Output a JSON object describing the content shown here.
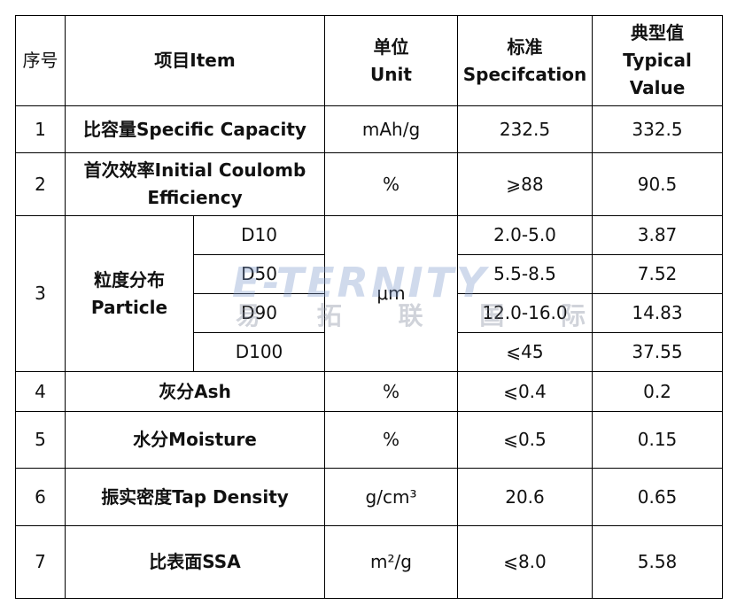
{
  "table": {
    "header": {
      "no": "序号",
      "item": "项目Item",
      "unit": [
        "单位",
        "Unit"
      ],
      "spec": [
        "标准",
        "Specifcation"
      ],
      "typical": [
        "典型值",
        "Typical",
        "Value"
      ]
    },
    "rows": [
      {
        "no": "1",
        "item": [
          "比容量Specific Capacity"
        ],
        "unit": "mAh/g",
        "spec": "232.5",
        "typical": "332.5"
      },
      {
        "no": "2",
        "item": [
          "首次效率Initial Coulomb",
          "Efficiency"
        ],
        "unit": "%",
        "spec": "⩾88",
        "typical": "90.5"
      },
      {
        "no": "3",
        "item": [
          "粒度分布",
          "Particle"
        ],
        "unit": "μm",
        "sub": [
          {
            "name": "D10",
            "spec": "2.0-5.0",
            "typical": "3.87"
          },
          {
            "name": "D50",
            "spec": "5.5-8.5",
            "typical": "7.52"
          },
          {
            "name": "D90",
            "spec": "12.0-16.0",
            "typical": "14.83"
          },
          {
            "name": "D100",
            "spec": "⩽45",
            "typical": "37.55"
          }
        ]
      },
      {
        "no": "4",
        "item": [
          "灰分Ash"
        ],
        "unit": "%",
        "spec": "⩽0.4",
        "typical": "0.2"
      },
      {
        "no": "5",
        "item": [
          "水分Moisture"
        ],
        "unit": "%",
        "spec": "⩽0.5",
        "typical": "0.15"
      },
      {
        "no": "6",
        "item": [
          "振实密度Tap Density"
        ],
        "unit": "g/cm³",
        "spec": "20.6",
        "typical": "0.65"
      },
      {
        "no": "7",
        "item": [
          "比表面SSA"
        ],
        "unit": "m²/g",
        "spec": "⩽8.0",
        "typical": "5.58"
      }
    ]
  },
  "watermark": {
    "brand": "E-TERNITY",
    "chinese": "易 拓 联 国 际"
  }
}
